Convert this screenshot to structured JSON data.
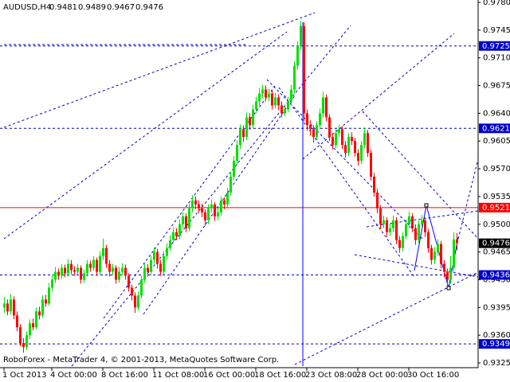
{
  "chart_data": {
    "type": "candlestick",
    "title": "AUDUSD,H4",
    "footer": "RoboForex - MetaTrader 4, © 2001-2013, MetaQuotes Software Corp.",
    "ylim": [
      0.9319,
      0.9783
    ],
    "yticks": [
      {
        "value": 0.978,
        "label": "0.9780"
      },
      0.9745,
      {
        "value": 0.971,
        "label": "0.9710"
      },
      0.9675,
      {
        "value": 0.964,
        "label": "0.9640"
      },
      0.9605,
      {
        "value": 0.957,
        "label": "0.9570"
      },
      0.9535,
      {
        "value": 0.95,
        "label": "0.9500"
      },
      0.9465,
      {
        "value": 0.943,
        "label": "0.9430"
      },
      0.9395,
      {
        "value": 0.936,
        "label": "0.9360"
      },
      0.9325
    ],
    "bull_color": "#00e000",
    "bear_color": "#ff0000",
    "levels": [
      {
        "value": 0.9725,
        "color": "#0000cc",
        "style": "dashed"
      },
      {
        "value": 0.9621,
        "color": "#0000cc",
        "style": "dashed"
      },
      {
        "value": 0.9521,
        "color": "#ff0000",
        "style": "solid"
      },
      {
        "value": 0.9436,
        "color": "#0000cc",
        "style": "dashed"
      },
      {
        "value": 0.9349,
        "color": "#0000cc",
        "style": "dashed"
      }
    ],
    "categories": [
      "1 Oct 2013",
      null,
      null,
      null,
      null,
      null,
      null,
      null,
      null,
      null,
      null,
      null,
      null,
      null,
      null,
      "4 Oct 00:00",
      null,
      null,
      null,
      null,
      null,
      null,
      null,
      null,
      null,
      null,
      null,
      null,
      null,
      null,
      null,
      "8 Oct 16:00",
      null,
      null,
      null,
      null,
      null,
      null,
      null,
      null,
      null,
      null,
      null,
      null,
      null,
      null,
      null,
      "11 Oct 08:00",
      null,
      null,
      null,
      null,
      null,
      null,
      null,
      null,
      null,
      null,
      null,
      null,
      null,
      null,
      null,
      "16 Oct 00:00",
      null,
      null,
      null,
      null,
      null,
      null,
      null,
      null,
      null,
      null,
      null,
      null,
      null,
      null,
      null,
      "18 Oct 16:00",
      null,
      null,
      null,
      null,
      null,
      null,
      null,
      null,
      null,
      null,
      null,
      null,
      null,
      null,
      null,
      "23 Oct 08:00",
      null,
      null,
      null,
      null,
      null,
      null,
      null,
      null,
      null,
      null,
      null,
      null,
      null,
      null,
      null,
      "28 Oct 00:00",
      null,
      null,
      null,
      null,
      null,
      null,
      null,
      null,
      null,
      null,
      null,
      null,
      null,
      null,
      null,
      "30 Oct 16:00",
      null,
      null,
      null,
      null,
      null,
      null,
      null,
      null,
      null,
      null,
      null,
      null,
      null,
      null,
      null
    ],
    "candles": [
      [
        0.9395,
        0.9408,
        0.9388,
        0.94
      ],
      [
        0.94,
        0.9405,
        0.9385,
        0.939
      ],
      [
        0.939,
        0.9412,
        0.9386,
        0.9405
      ],
      [
        0.9405,
        0.9409,
        0.938,
        0.9385
      ],
      [
        0.9385,
        0.939,
        0.9365,
        0.937
      ],
      [
        0.937,
        0.9374,
        0.9346,
        0.935
      ],
      [
        0.935,
        0.9356,
        0.9338,
        0.9345
      ],
      [
        0.9345,
        0.9365,
        0.9341,
        0.936
      ],
      [
        0.936,
        0.938,
        0.9355,
        0.9375
      ],
      [
        0.9375,
        0.9381,
        0.9366,
        0.937
      ],
      [
        0.937,
        0.9395,
        0.9367,
        0.939
      ],
      [
        0.939,
        0.9396,
        0.938,
        0.9385
      ],
      [
        0.9385,
        0.941,
        0.9382,
        0.9405
      ],
      [
        0.9405,
        0.9411,
        0.9396,
        0.94
      ],
      [
        0.94,
        0.9426,
        0.9397,
        0.942
      ],
      [
        0.942,
        0.9436,
        0.9415,
        0.943
      ],
      [
        0.943,
        0.9446,
        0.9426,
        0.944
      ],
      [
        0.944,
        0.9444,
        0.943,
        0.9435
      ],
      [
        0.9435,
        0.945,
        0.9431,
        0.9445
      ],
      [
        0.9445,
        0.9449,
        0.9433,
        0.9438
      ],
      [
        0.9438,
        0.9456,
        0.9434,
        0.945
      ],
      [
        0.945,
        0.9455,
        0.9437,
        0.9442
      ],
      [
        0.9442,
        0.9447,
        0.9435,
        0.944
      ],
      [
        0.944,
        0.945,
        0.9436,
        0.9445
      ],
      [
        0.9445,
        0.9448,
        0.9425,
        0.943
      ],
      [
        0.943,
        0.9443,
        0.9426,
        0.9438
      ],
      [
        0.9438,
        0.9455,
        0.9434,
        0.945
      ],
      [
        0.945,
        0.9454,
        0.944,
        0.9445
      ],
      [
        0.9445,
        0.946,
        0.9441,
        0.9455
      ],
      [
        0.9455,
        0.9458,
        0.9435,
        0.944
      ],
      [
        0.944,
        0.9466,
        0.9436,
        0.946
      ],
      [
        0.946,
        0.9482,
        0.9455,
        0.947
      ],
      [
        0.947,
        0.9474,
        0.9445,
        0.945
      ],
      [
        0.945,
        0.9455,
        0.9434,
        0.944
      ],
      [
        0.944,
        0.945,
        0.9436,
        0.9445
      ],
      [
        0.9445,
        0.9448,
        0.9425,
        0.943
      ],
      [
        0.943,
        0.9446,
        0.9426,
        0.944
      ],
      [
        0.944,
        0.9451,
        0.9436,
        0.9445
      ],
      [
        0.9445,
        0.9449,
        0.943,
        0.9435
      ],
      [
        0.9435,
        0.9438,
        0.9415,
        0.942
      ],
      [
        0.942,
        0.9424,
        0.9404,
        0.941
      ],
      [
        0.941,
        0.9414,
        0.9388,
        0.9395
      ],
      [
        0.9395,
        0.9415,
        0.9391,
        0.941
      ],
      [
        0.941,
        0.9435,
        0.9406,
        0.943
      ],
      [
        0.943,
        0.945,
        0.9426,
        0.9445
      ],
      [
        0.9445,
        0.945,
        0.9434,
        0.944
      ],
      [
        0.944,
        0.946,
        0.9436,
        0.9455
      ],
      [
        0.9455,
        0.9471,
        0.945,
        0.9465
      ],
      [
        0.9465,
        0.9469,
        0.9444,
        0.945
      ],
      [
        0.945,
        0.9455,
        0.9435,
        0.944
      ],
      [
        0.944,
        0.9466,
        0.9436,
        0.946
      ],
      [
        0.946,
        0.9476,
        0.9455,
        0.947
      ],
      [
        0.947,
        0.9486,
        0.9466,
        0.948
      ],
      [
        0.948,
        0.9496,
        0.9476,
        0.949
      ],
      [
        0.949,
        0.9495,
        0.948,
        0.9485
      ],
      [
        0.9485,
        0.9506,
        0.9481,
        0.95
      ],
      [
        0.95,
        0.9516,
        0.9495,
        0.951
      ],
      [
        0.951,
        0.9514,
        0.949,
        0.9495
      ],
      [
        0.9495,
        0.9526,
        0.9491,
        0.952
      ],
      [
        0.952,
        0.9537,
        0.9515,
        0.953
      ],
      [
        0.953,
        0.9535,
        0.9519,
        0.9525
      ],
      [
        0.9525,
        0.953,
        0.9514,
        0.952
      ],
      [
        0.952,
        0.9526,
        0.9509,
        0.9515
      ],
      [
        0.9515,
        0.9519,
        0.9498,
        0.9505
      ],
      [
        0.9505,
        0.9525,
        0.95,
        0.952
      ],
      [
        0.952,
        0.9531,
        0.9515,
        0.9525
      ],
      [
        0.9525,
        0.9528,
        0.9504,
        0.951
      ],
      [
        0.951,
        0.9521,
        0.9505,
        0.9515
      ],
      [
        0.9515,
        0.9535,
        0.9511,
        0.953
      ],
      [
        0.953,
        0.9534,
        0.9519,
        0.9525
      ],
      [
        0.9525,
        0.9546,
        0.9521,
        0.954
      ],
      [
        0.954,
        0.9566,
        0.9536,
        0.956
      ],
      [
        0.956,
        0.9586,
        0.9556,
        0.958
      ],
      [
        0.958,
        0.9606,
        0.9575,
        0.96
      ],
      [
        0.96,
        0.9626,
        0.9595,
        0.962
      ],
      [
        0.962,
        0.9625,
        0.9604,
        0.961
      ],
      [
        0.961,
        0.9641,
        0.9606,
        0.9635
      ],
      [
        0.9635,
        0.964,
        0.9619,
        0.9625
      ],
      [
        0.9625,
        0.9651,
        0.9621,
        0.9645
      ],
      [
        0.9645,
        0.9661,
        0.964,
        0.9655
      ],
      [
        0.9655,
        0.9672,
        0.965,
        0.9665
      ],
      [
        0.9665,
        0.9676,
        0.9659,
        0.967
      ],
      [
        0.967,
        0.9675,
        0.9655,
        0.966
      ],
      [
        0.966,
        0.9671,
        0.9655,
        0.9665
      ],
      [
        0.9665,
        0.9669,
        0.9645,
        0.965
      ],
      [
        0.965,
        0.9666,
        0.9646,
        0.966
      ],
      [
        0.966,
        0.9664,
        0.9644,
        0.965
      ],
      [
        0.965,
        0.9655,
        0.9635,
        0.964
      ],
      [
        0.964,
        0.9651,
        0.9636,
        0.9645
      ],
      [
        0.9645,
        0.9661,
        0.9641,
        0.9655
      ],
      [
        0.9655,
        0.9676,
        0.965,
        0.967
      ],
      [
        0.967,
        0.9706,
        0.9665,
        0.97
      ],
      [
        0.97,
        0.9731,
        0.9695,
        0.9725
      ],
      [
        0.9725,
        0.9757,
        0.972,
        0.975
      ],
      [
        0.975,
        0.9755,
        0.963,
        0.964
      ],
      [
        0.964,
        0.9645,
        0.9618,
        0.9625
      ],
      [
        0.9625,
        0.9631,
        0.9612,
        0.962
      ],
      [
        0.962,
        0.9625,
        0.9603,
        0.961
      ],
      [
        0.961,
        0.963,
        0.9606,
        0.9625
      ],
      [
        0.9625,
        0.9646,
        0.962,
        0.964
      ],
      [
        0.964,
        0.9667,
        0.9635,
        0.966
      ],
      [
        0.966,
        0.9664,
        0.963,
        0.9635
      ],
      [
        0.9635,
        0.9639,
        0.9605,
        0.961
      ],
      [
        0.961,
        0.9615,
        0.9594,
        0.96
      ],
      [
        0.96,
        0.962,
        0.9596,
        0.9615
      ],
      [
        0.9615,
        0.9626,
        0.961,
        0.962
      ],
      [
        0.962,
        0.9624,
        0.9595,
        0.96
      ],
      [
        0.96,
        0.9605,
        0.9584,
        0.959
      ],
      [
        0.959,
        0.9615,
        0.9586,
        0.961
      ],
      [
        0.961,
        0.9616,
        0.96,
        0.9605
      ],
      [
        0.9605,
        0.9609,
        0.9585,
        0.959
      ],
      [
        0.959,
        0.9595,
        0.9574,
        0.958
      ],
      [
        0.958,
        0.9605,
        0.9576,
        0.96
      ],
      [
        0.96,
        0.9622,
        0.9596,
        0.9615
      ],
      [
        0.9615,
        0.9619,
        0.9585,
        0.959
      ],
      [
        0.959,
        0.9594,
        0.9555,
        0.956
      ],
      [
        0.956,
        0.9565,
        0.9535,
        0.954
      ],
      [
        0.954,
        0.9545,
        0.9514,
        0.952
      ],
      [
        0.952,
        0.9524,
        0.9494,
        0.95
      ],
      [
        0.95,
        0.9511,
        0.9495,
        0.9505
      ],
      [
        0.9505,
        0.9509,
        0.9484,
        0.949
      ],
      [
        0.949,
        0.9501,
        0.9485,
        0.9495
      ],
      [
        0.9495,
        0.9511,
        0.949,
        0.9505
      ],
      [
        0.9505,
        0.9509,
        0.9475,
        0.948
      ],
      [
        0.948,
        0.9485,
        0.9464,
        0.947
      ],
      [
        0.947,
        0.949,
        0.9466,
        0.9485
      ],
      [
        0.9485,
        0.9506,
        0.9481,
        0.95
      ],
      [
        0.95,
        0.9516,
        0.9495,
        0.951
      ],
      [
        0.951,
        0.9514,
        0.949,
        0.9495
      ],
      [
        0.9495,
        0.95,
        0.9474,
        0.948
      ],
      [
        0.948,
        0.9505,
        0.9476,
        0.95
      ],
      [
        0.95,
        0.9512,
        0.9495,
        0.9505
      ],
      [
        0.9505,
        0.9509,
        0.9484,
        0.949
      ],
      [
        0.949,
        0.9494,
        0.9464,
        0.947
      ],
      [
        0.947,
        0.9474,
        0.9449,
        0.9455
      ],
      [
        0.9455,
        0.9471,
        0.945,
        0.9465
      ],
      [
        0.9465,
        0.9481,
        0.946,
        0.9475
      ],
      [
        0.9475,
        0.9479,
        0.9444,
        0.945
      ],
      [
        0.945,
        0.9455,
        0.9433,
        0.944
      ],
      [
        0.944,
        0.9444,
        0.942,
        0.943
      ],
      [
        0.943,
        0.946,
        0.9425,
        0.9445
      ],
      [
        0.9445,
        0.949,
        0.944,
        0.9481
      ],
      [
        0.9481,
        0.9489,
        0.9467,
        0.9476
      ]
    ]
  }
}
